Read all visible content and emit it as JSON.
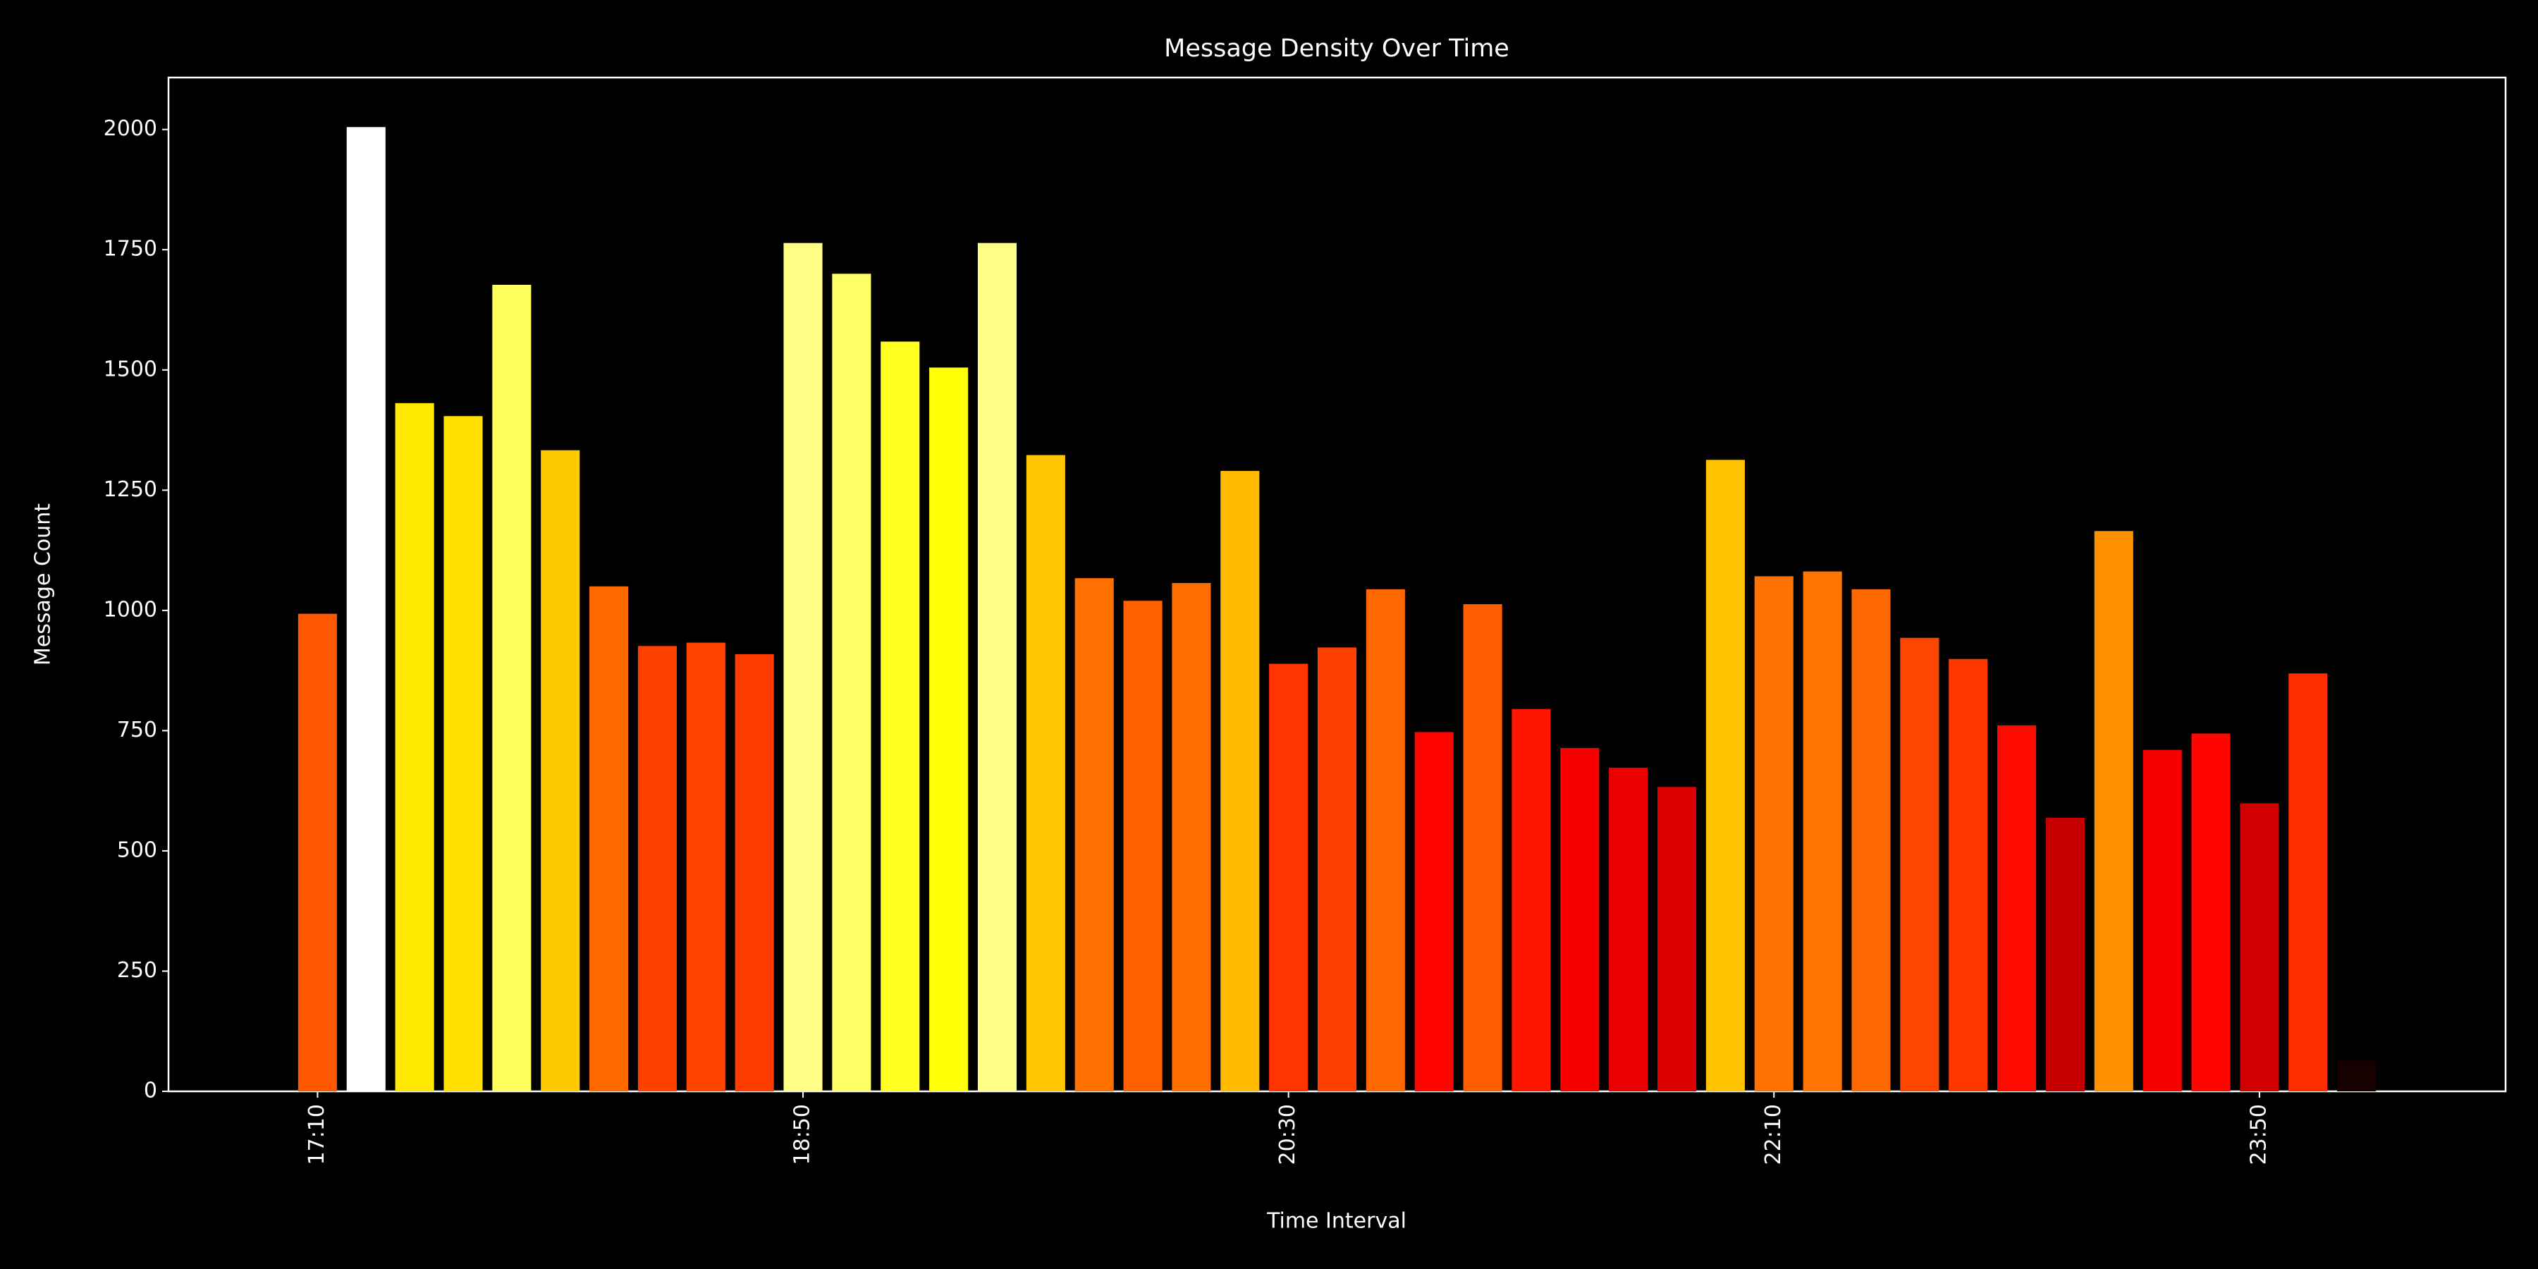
{
  "chart_data": {
    "type": "bar",
    "title": "Message Density Over Time",
    "x_label": "Time Interval",
    "y_label": "Message Count",
    "categories": [
      "17:10",
      null,
      null,
      null,
      null,
      null,
      null,
      null,
      null,
      null,
      "18:50",
      null,
      null,
      null,
      null,
      null,
      null,
      null,
      null,
      null,
      "20:30",
      null,
      null,
      null,
      null,
      null,
      null,
      null,
      null,
      null,
      "22:10",
      null,
      null,
      null,
      null,
      null,
      null,
      null,
      null,
      null,
      "23:50",
      null,
      null
    ],
    "values": [
      993,
      2005,
      1431,
      1404,
      1677,
      1333,
      1050,
      926,
      933,
      909,
      1764,
      1700,
      1559,
      1505,
      1764,
      1323,
      1067,
      1020,
      1057,
      1290,
      889,
      923,
      1044,
      747,
      1013,
      795,
      714,
      673,
      633,
      1313,
      1071,
      1081,
      1044,
      943,
      899,
      761,
      569,
      1165,
      710,
      744,
      599,
      869,
      64
    ],
    "colormap": "hot",
    "ylim": [
      0,
      2108
    ],
    "yticks": [
      0,
      250,
      500,
      750,
      1000,
      1250,
      1500,
      1750,
      2000
    ],
    "grid": false
  }
}
